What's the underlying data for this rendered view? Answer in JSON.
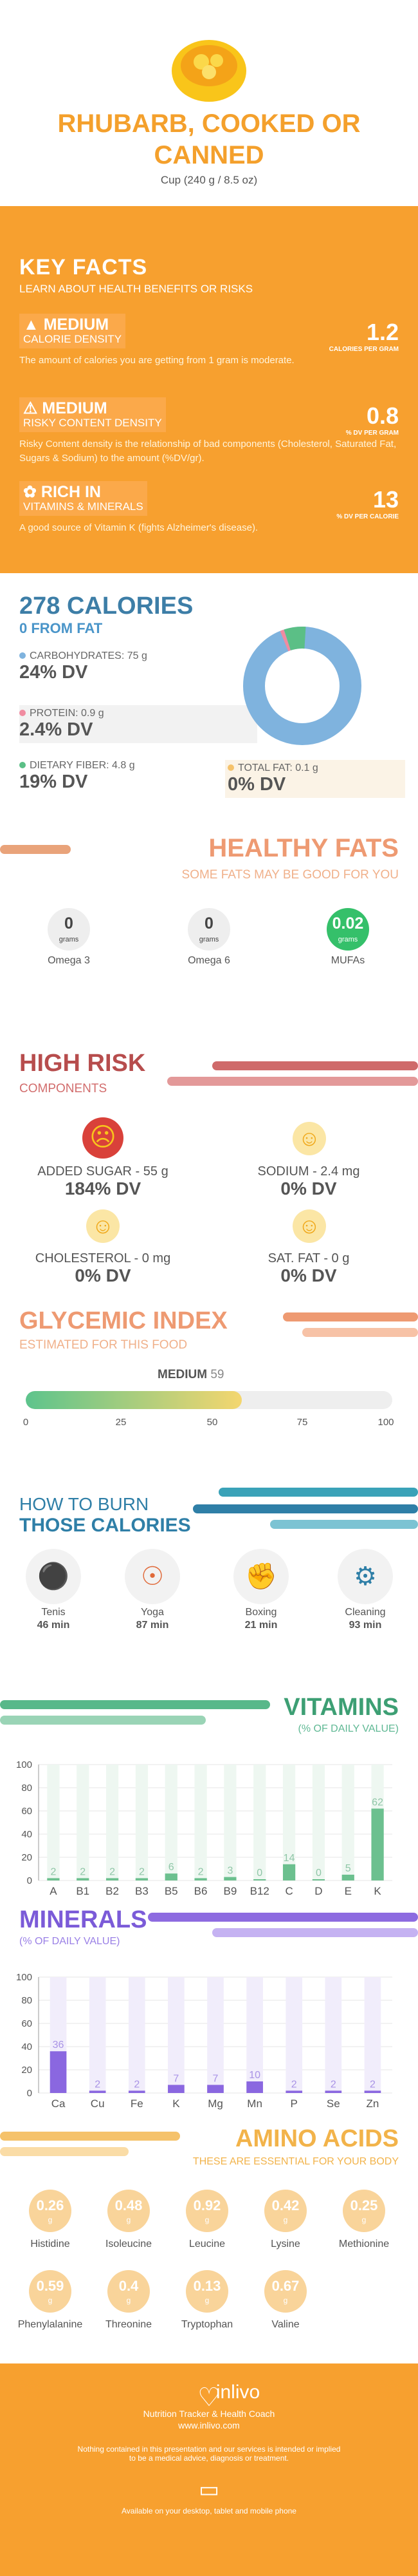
{
  "header": {
    "title_line1": "RHUBARB, COOKED OR",
    "title_line2": "CANNED",
    "serving": "Cup (240 g / 8.5 oz)"
  },
  "facts": {
    "title": "KEY FACTS",
    "subtitle": "LEARN ABOUT HEALTH BENEFITS OR RISKS",
    "items": [
      {
        "level": "MEDIUM",
        "kind": "CALORIE DENSITY",
        "value": "1.2",
        "unit": "CALORIES PER GRAM",
        "desc": "The amount of calories you are getting from 1 gram is moderate."
      },
      {
        "level": "MEDIUM",
        "kind": "RISKY CONTENT DENSITY",
        "value": "0.8",
        "unit": "% DV PER GRAM",
        "desc": "Risky Content density is the relationship of bad components (Cholesterol, Saturated Fat, Sugars & Sodium) to the amount (%DV/gr)."
      },
      {
        "level": "RICH  IN",
        "kind": "VITAMINS & MINERALS",
        "value": "13",
        "unit": "% DV PER CALORIE",
        "desc": "A good source of Vitamin K (fights Alzheimer's disease)."
      }
    ]
  },
  "calories": {
    "title": "278 CALORIES",
    "from_fat": "0 FROM FAT",
    "carbs_label": "CARBOHYDRATES: 75 g",
    "carbs_dv": "24% DV",
    "protein_label": "PROTEIN: 0.9 g",
    "protein_dv": "2.4% DV",
    "fiber_label": "DIETARY FIBER: 4.8 g",
    "fiber_dv": "19% DV",
    "fat_label": "TOTAL FAT: 0.1 g",
    "fat_dv": "0% DV",
    "colors": {
      "carbs": "#7fb3de",
      "protein": "#f08ba0",
      "fiber": "#5bbf86",
      "fat": "#f5c26b"
    }
  },
  "healthy_fats": {
    "title": "HEALTHY FATS",
    "subtitle": "SOME FATS MAY BE GOOD FOR YOU",
    "items": [
      {
        "value": "0",
        "unit": "grams",
        "name": "Omega 3"
      },
      {
        "value": "0",
        "unit": "grams",
        "name": "Omega 6"
      },
      {
        "value": "0.02",
        "unit": "grams",
        "name": "MUFAs"
      }
    ]
  },
  "high_risk": {
    "title": "HIGH RISK",
    "subtitle": "COMPONENTS",
    "items": [
      {
        "label": "ADDED SUGAR - 55 g",
        "dv": "184% DV"
      },
      {
        "label": "SODIUM - 2.4 mg",
        "dv": "0% DV"
      },
      {
        "label": "CHOLESTEROL - 0 mg",
        "dv": "0% DV"
      },
      {
        "label": "SAT. FAT - 0 g",
        "dv": "0% DV"
      }
    ]
  },
  "glycemic": {
    "title": "GLYCEMIC INDEX",
    "subtitle": "ESTIMATED FOR THIS FOOD",
    "level": "MEDIUM",
    "value": "59",
    "value_num": 59,
    "ticks": [
      "0",
      "25",
      "50",
      "75",
      "100"
    ]
  },
  "burn": {
    "title1": "HOW TO BURN",
    "title2": "THOSE CALORIES",
    "items": [
      {
        "name": "Tenis",
        "time": "46 min"
      },
      {
        "name": "Yoga",
        "time": "87 min"
      },
      {
        "name": "Boxing",
        "time": "21 min"
      },
      {
        "name": "Cleaning",
        "time": "93 min"
      }
    ]
  },
  "vitamins": {
    "title": "VITAMINS",
    "subtitle": "(% OF DAILY VALUE)"
  },
  "minerals": {
    "title": "MINERALS",
    "subtitle": "(% OF DAILY VALUE)"
  },
  "chart_data": [
    {
      "type": "bar",
      "title": "VITAMINS",
      "ylabel": "",
      "ylim": [
        0,
        100
      ],
      "yticks": [
        "0",
        "20",
        "40",
        "60",
        "80",
        "100"
      ],
      "categories": [
        "A",
        "B1",
        "B2",
        "B3",
        "B5",
        "B6",
        "B9",
        "B12",
        "C",
        "D",
        "E",
        "K"
      ],
      "values": [
        2,
        2,
        2,
        2,
        6,
        2,
        3,
        0,
        14,
        0,
        5,
        62
      ],
      "labels": [
        "2",
        "2",
        "2",
        "2",
        "6",
        "2",
        "3",
        "0",
        "14",
        "0",
        "5",
        "62"
      ]
    },
    {
      "type": "bar",
      "title": "MINERALS",
      "ylabel": "",
      "ylim": [
        0,
        100
      ],
      "yticks": [
        "0",
        "20",
        "40",
        "60",
        "80",
        "100"
      ],
      "categories": [
        "Ca",
        "Cu",
        "Fe",
        "K",
        "Mg",
        "Mn",
        "P",
        "Se",
        "Zn"
      ],
      "values": [
        36,
        2,
        2,
        7,
        7,
        10,
        2,
        2,
        2
      ],
      "labels": [
        "36",
        "2",
        "2",
        "7",
        "7",
        "10",
        "2",
        "2",
        "2"
      ]
    }
  ],
  "amino": {
    "title": "AMINO ACIDS",
    "subtitle": "THESE ARE ESSENTIAL FOR YOUR BODY",
    "items": [
      {
        "value": "0.26",
        "unit": "g",
        "name": "Histidine"
      },
      {
        "value": "0.48",
        "unit": "g",
        "name": "Isoleucine"
      },
      {
        "value": "0.92",
        "unit": "g",
        "name": "Leucine"
      },
      {
        "value": "0.42",
        "unit": "g",
        "name": "Lysine"
      },
      {
        "value": "0.25",
        "unit": "g",
        "name": "Methionine"
      },
      {
        "value": "0.59",
        "unit": "g",
        "name": "Phenylalanine"
      },
      {
        "value": "0.4",
        "unit": "g",
        "name": "Threonine"
      },
      {
        "value": "0.13",
        "unit": "g",
        "name": "Tryptophan"
      },
      {
        "value": "0.67",
        "unit": "g",
        "name": "Valine"
      }
    ]
  },
  "footer": {
    "brand": "inlivo",
    "tagline": "Nutrition Tracker & Health Coach",
    "url": "www.inlivo.com",
    "disclaimer1": "Nothing contained in this presentation and our services is intended or implied",
    "disclaimer2": "to be a medical advice, diagnosis or treatment.",
    "available": "Available on your desktop, tablet and mobile phone"
  }
}
